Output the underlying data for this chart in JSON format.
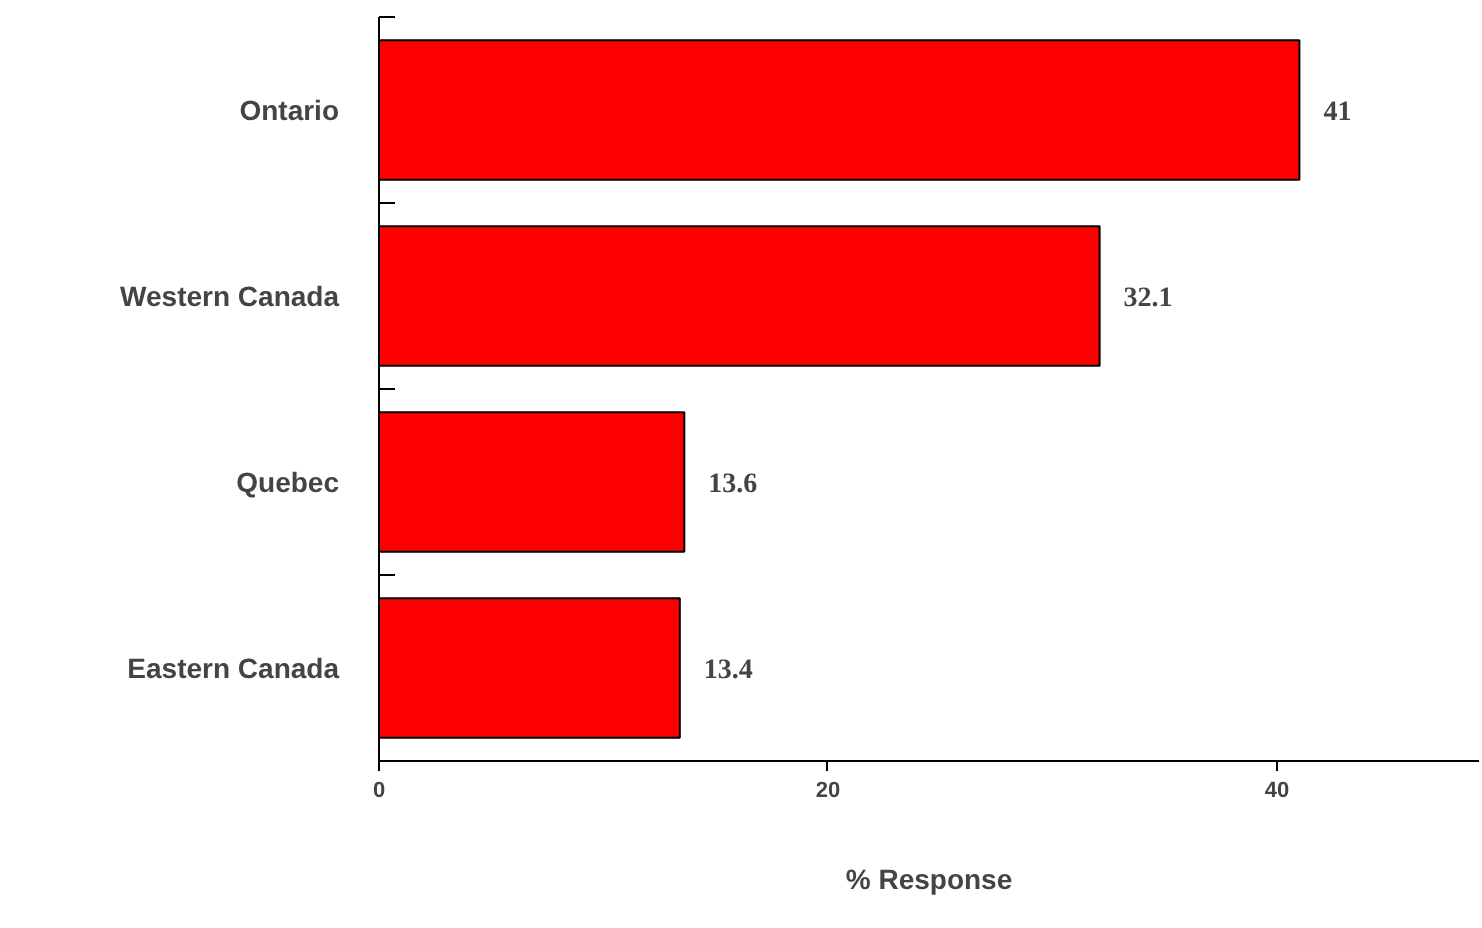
{
  "chart_data": {
    "type": "bar",
    "orientation": "horizontal",
    "xlabel": "% Response",
    "categories": [
      "Ontario",
      "Western Canada",
      "Quebec",
      "Eastern Canada"
    ],
    "values": [
      41,
      32.1,
      13.6,
      13.4
    ],
    "color": "#ff0000",
    "xlim": [
      0,
      49
    ],
    "xticks": [
      0,
      20,
      40
    ],
    "grid": false,
    "data_labels": true
  }
}
